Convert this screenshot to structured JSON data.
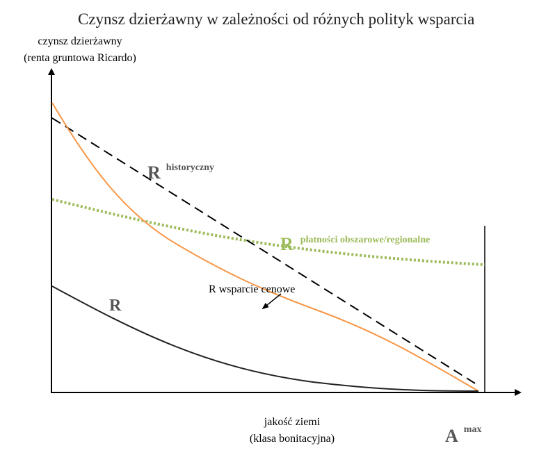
{
  "title": "Czynsz dzierżawny w zależności od różnych polityk wsparcia",
  "y_axis": {
    "lines": [
      "czynsz dzierżawny",
      "(renta gruntowa Ricardo)"
    ]
  },
  "x_axis": {
    "lines": [
      "jakość ziemi",
      "(klasa bonitacyjna)"
    ],
    "end_label": {
      "main": "A",
      "sup": "max"
    }
  },
  "curves": [
    {
      "label": "R",
      "sup": "historyczny"
    },
    {
      "label": "R",
      "sup": "płatności obszarowe/regionalne"
    },
    {
      "label": "R wsparcie cenowe"
    },
    {
      "label": "R"
    }
  ]
}
